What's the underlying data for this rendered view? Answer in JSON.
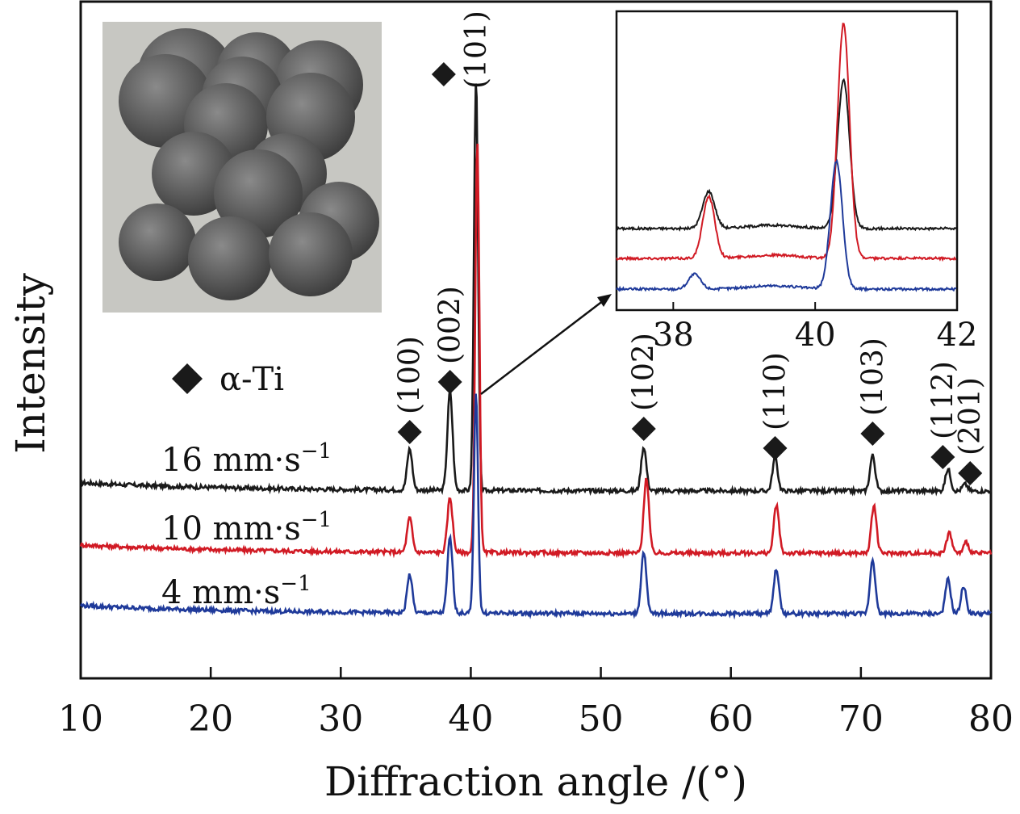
{
  "chart_data": {
    "type": "line",
    "xlabel": "Diffraction angle /(°)",
    "ylabel": "Intensity",
    "xlim": [
      10,
      80
    ],
    "x_ticks": [
      "10",
      "20",
      "30",
      "40",
      "50",
      "60",
      "70",
      "80"
    ],
    "legend": [
      {
        "marker": "diamond",
        "label": "α-Ti"
      }
    ],
    "colors": {
      "16": "#1a1a1a",
      "10": "#d11a24",
      "4": "#1f3a9a"
    },
    "series": [
      {
        "name_value": "16",
        "name_unit": "mm·s",
        "name_exp": "−1",
        "color": "#1a1a1a",
        "baseline": 0.0,
        "peaks": [
          [
            35.3,
            0.3
          ],
          [
            38.4,
            0.72
          ],
          [
            40.4,
            3.0
          ],
          [
            53.3,
            0.32
          ],
          [
            63.4,
            0.24
          ],
          [
            70.9,
            0.26
          ],
          [
            76.7,
            0.16
          ],
          [
            78.0,
            0.05
          ]
        ]
      },
      {
        "name_value": "10",
        "name_unit": "mm·s",
        "name_exp": "−1",
        "color": "#d11a24",
        "baseline": 0.0,
        "peaks": [
          [
            35.3,
            0.25
          ],
          [
            38.4,
            0.4
          ],
          [
            40.5,
            3.0
          ],
          [
            53.5,
            0.55
          ],
          [
            63.5,
            0.35
          ],
          [
            71.0,
            0.35
          ],
          [
            76.8,
            0.15
          ],
          [
            78.1,
            0.08
          ]
        ]
      },
      {
        "name_value": "4",
        "name_unit": "mm·s",
        "name_exp": "−1",
        "color": "#1f3a9a",
        "baseline": 0.0,
        "peaks": [
          [
            35.3,
            0.28
          ],
          [
            38.4,
            0.55
          ],
          [
            40.4,
            1.6
          ],
          [
            53.3,
            0.45
          ],
          [
            63.5,
            0.33
          ],
          [
            70.9,
            0.4
          ],
          [
            76.7,
            0.25
          ],
          [
            77.9,
            0.2
          ]
        ]
      }
    ],
    "peak_labels": [
      {
        "label": "(100)",
        "x": 35.3
      },
      {
        "label": "(002)",
        "x": 38.4
      },
      {
        "label": "(101)",
        "x": 40.4
      },
      {
        "label": "(102)",
        "x": 53.3
      },
      {
        "label": "(110)",
        "x": 63.4
      },
      {
        "label": "(103)",
        "x": 70.9
      },
      {
        "label": "(112)",
        "x": 76.3
      },
      {
        "label": "(201)",
        "x": 78.4
      }
    ],
    "inset": {
      "xlim": [
        37.2,
        42
      ],
      "x_ticks": [
        "38",
        "40",
        "42"
      ],
      "series": [
        {
          "color": "#1a1a1a",
          "peaks": [
            [
              38.5,
              0.45
            ],
            [
              40.4,
              1.8
            ]
          ]
        },
        {
          "color": "#d11a24",
          "peaks": [
            [
              38.5,
              0.75
            ],
            [
              40.4,
              2.85
            ]
          ]
        },
        {
          "color": "#1f3a9a",
          "peaks": [
            [
              38.3,
              0.18
            ],
            [
              40.3,
              1.55
            ]
          ]
        }
      ]
    }
  }
}
